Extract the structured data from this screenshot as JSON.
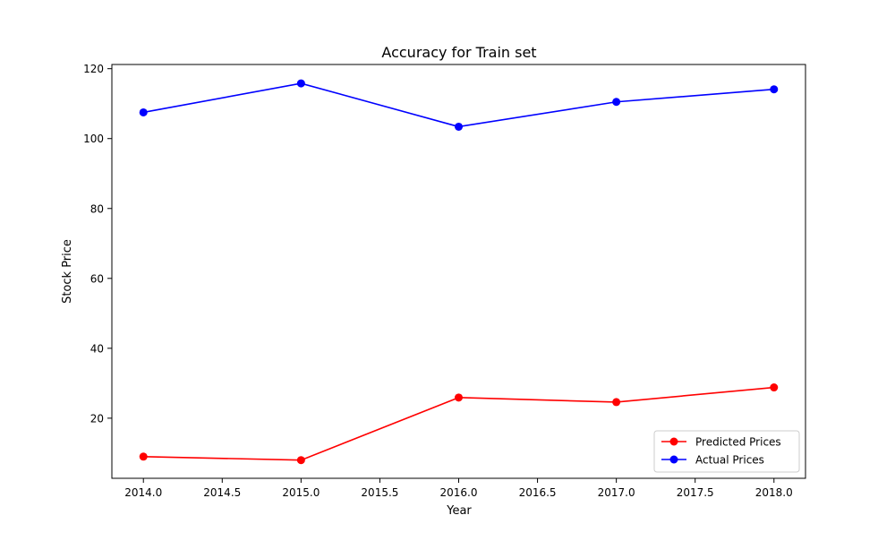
{
  "chart_data": {
    "type": "line",
    "title": "Accuracy for Train set",
    "xlabel": "Year",
    "ylabel": "Stock Price",
    "x": [
      2014,
      2015,
      2016,
      2017,
      2018
    ],
    "xlim": [
      2013.8,
      2018.2
    ],
    "ylim": [
      2.8,
      121.2
    ],
    "xticks": [
      2014.0,
      2014.5,
      2015.0,
      2015.5,
      2016.0,
      2016.5,
      2017.0,
      2017.5,
      2018.0
    ],
    "xtick_labels": [
      "2014.0",
      "2014.5",
      "2015.0",
      "2015.5",
      "2016.0",
      "2016.5",
      "2017.0",
      "2017.5",
      "2018.0"
    ],
    "yticks": [
      20,
      40,
      60,
      80,
      100,
      120
    ],
    "ytick_labels": [
      "20",
      "40",
      "60",
      "80",
      "100",
      "120"
    ],
    "grid": false,
    "legend_position": "lower-right",
    "series": [
      {
        "name": "Predicted Prices",
        "color": "#ff0000",
        "marker": "circle",
        "values": [
          9.0,
          8.0,
          25.9,
          24.6,
          28.8
        ]
      },
      {
        "name": "Actual Prices",
        "color": "#0000ff",
        "marker": "circle",
        "values": [
          107.5,
          115.8,
          103.4,
          110.5,
          114.1
        ]
      }
    ]
  }
}
